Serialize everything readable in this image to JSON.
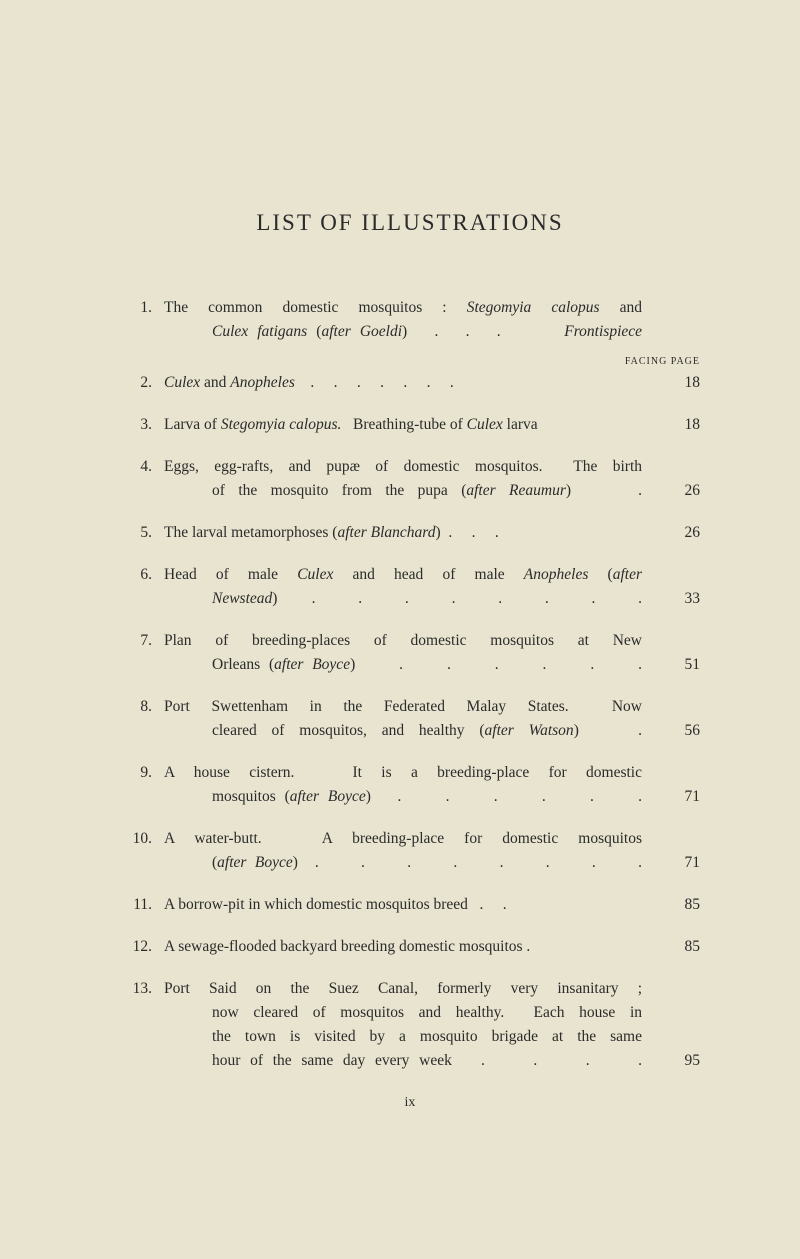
{
  "title": "LIST OF ILLUSTRATIONS",
  "facing_label": "FACING PAGE",
  "footer": "ix",
  "entries": [
    {
      "num": "1.",
      "lines": [
        "The common domestic mosquitos : <span class='i'>Stegomyia calopus</span> and",
        "<span class='i'>Culex fatigans</span> (<span class='i'>after Goeldi</span>)&nbsp;&nbsp;&nbsp;.&nbsp;&nbsp;&nbsp;.&nbsp;&nbsp;&nbsp;.&nbsp;&nbsp;&nbsp;&nbsp;&nbsp;&nbsp;&nbsp;<span class='i'>Frontispiece</span>"
      ],
      "page": ""
    },
    {
      "num": "2.",
      "lines": [
        "<span class='i'>Culex</span> and <span class='i'>Anopheles</span>&nbsp;&nbsp;&nbsp;&nbsp;.&nbsp;&nbsp;&nbsp;&nbsp;&nbsp;.&nbsp;&nbsp;&nbsp;&nbsp;&nbsp;.&nbsp;&nbsp;&nbsp;&nbsp;&nbsp;.&nbsp;&nbsp;&nbsp;&nbsp;&nbsp;.&nbsp;&nbsp;&nbsp;&nbsp;&nbsp;.&nbsp;&nbsp;&nbsp;&nbsp;&nbsp;."
      ],
      "page": "18"
    },
    {
      "num": "3.",
      "lines": [
        "Larva of <span class='i'>Stegomyia calopus.</span>&nbsp;&nbsp;&nbsp;Breathing-tube of <span class='i'>Culex</span> larva"
      ],
      "page": "18"
    },
    {
      "num": "4.",
      "lines": [
        "Eggs, egg-rafts, and pupæ of domestic mosquitos.&nbsp;&nbsp;The birth",
        "of the mosquito from the pupa (<span class='i'>after Reaumur</span>)&nbsp;&nbsp;&nbsp;&nbsp;&nbsp;."
      ],
      "page": "26"
    },
    {
      "num": "5.",
      "lines": [
        "The larval metamorphoses (<span class='i'>after Blanchard</span>)&nbsp;&nbsp;.&nbsp;&nbsp;&nbsp;&nbsp;&nbsp;.&nbsp;&nbsp;&nbsp;&nbsp;&nbsp;."
      ],
      "page": "26"
    },
    {
      "num": "6.",
      "lines": [
        "Head of male <span class='i'>Culex</span> and head of male <span class='i'>Anopheles</span> (<span class='i'>after</span>",
        "<span class='i'>Newstead</span>)&nbsp;&nbsp;&nbsp;&nbsp;.&nbsp;&nbsp;&nbsp;&nbsp;&nbsp;.&nbsp;&nbsp;&nbsp;&nbsp;&nbsp;.&nbsp;&nbsp;&nbsp;&nbsp;&nbsp;.&nbsp;&nbsp;&nbsp;&nbsp;&nbsp;.&nbsp;&nbsp;&nbsp;&nbsp;&nbsp;.&nbsp;&nbsp;&nbsp;&nbsp;&nbsp;.&nbsp;&nbsp;&nbsp;&nbsp;&nbsp;."
      ],
      "page": "33"
    },
    {
      "num": "7.",
      "lines": [
        "Plan of breeding-places of domestic mosquitos at New",
        "Orleans (<span class='i'>after Boyce</span>)&nbsp;&nbsp;&nbsp;&nbsp;&nbsp;.&nbsp;&nbsp;&nbsp;&nbsp;&nbsp;.&nbsp;&nbsp;&nbsp;&nbsp;&nbsp;.&nbsp;&nbsp;&nbsp;&nbsp;&nbsp;.&nbsp;&nbsp;&nbsp;&nbsp;&nbsp;.&nbsp;&nbsp;&nbsp;&nbsp;&nbsp;."
      ],
      "page": "51"
    },
    {
      "num": "8.",
      "lines": [
        "Port Swettenham in the Federated Malay States.&nbsp;&nbsp;Now",
        "cleared of mosquitos, and healthy (<span class='i'>after Watson</span>)&nbsp;&nbsp;&nbsp;&nbsp;."
      ],
      "page": "56"
    },
    {
      "num": "9.",
      "lines": [
        "A house cistern.&nbsp;&nbsp;&nbsp;It is a breeding-place for domestic",
        "mosquitos (<span class='i'>after Boyce</span>)&nbsp;&nbsp;&nbsp;.&nbsp;&nbsp;&nbsp;&nbsp;&nbsp;.&nbsp;&nbsp;&nbsp;&nbsp;&nbsp;.&nbsp;&nbsp;&nbsp;&nbsp;&nbsp;.&nbsp;&nbsp;&nbsp;&nbsp;&nbsp;.&nbsp;&nbsp;&nbsp;&nbsp;&nbsp;."
      ],
      "page": "71"
    },
    {
      "num": "10.",
      "lines": [
        "A water-butt.&nbsp;&nbsp;&nbsp;A breeding-place for domestic mosquitos",
        "(<span class='i'>after Boyce</span>)&nbsp;&nbsp;.&nbsp;&nbsp;&nbsp;&nbsp;&nbsp;.&nbsp;&nbsp;&nbsp;&nbsp;&nbsp;.&nbsp;&nbsp;&nbsp;&nbsp;&nbsp;.&nbsp;&nbsp;&nbsp;&nbsp;&nbsp;.&nbsp;&nbsp;&nbsp;&nbsp;&nbsp;.&nbsp;&nbsp;&nbsp;&nbsp;&nbsp;.&nbsp;&nbsp;&nbsp;&nbsp;&nbsp;."
      ],
      "page": "71"
    },
    {
      "num": "11.",
      "lines": [
        "A borrow-pit in which domestic mosquitos breed&nbsp;&nbsp;&nbsp;.&nbsp;&nbsp;&nbsp;&nbsp;&nbsp;."
      ],
      "page": "85"
    },
    {
      "num": "12.",
      "lines": [
        "A sewage-flooded backyard breeding domestic mosquitos ."
      ],
      "page": "85"
    },
    {
      "num": "13.",
      "lines": [
        "Port Said on the Suez Canal, formerly very insanitary ;",
        "now cleared of mosquitos and healthy.&nbsp;&nbsp;Each house in",
        "the town is visited by a mosquito brigade at the same",
        "hour of the same day every week&nbsp;&nbsp;&nbsp;.&nbsp;&nbsp;&nbsp;&nbsp;&nbsp;.&nbsp;&nbsp;&nbsp;&nbsp;&nbsp;.&nbsp;&nbsp;&nbsp;&nbsp;&nbsp;."
      ],
      "page": "95"
    }
  ]
}
